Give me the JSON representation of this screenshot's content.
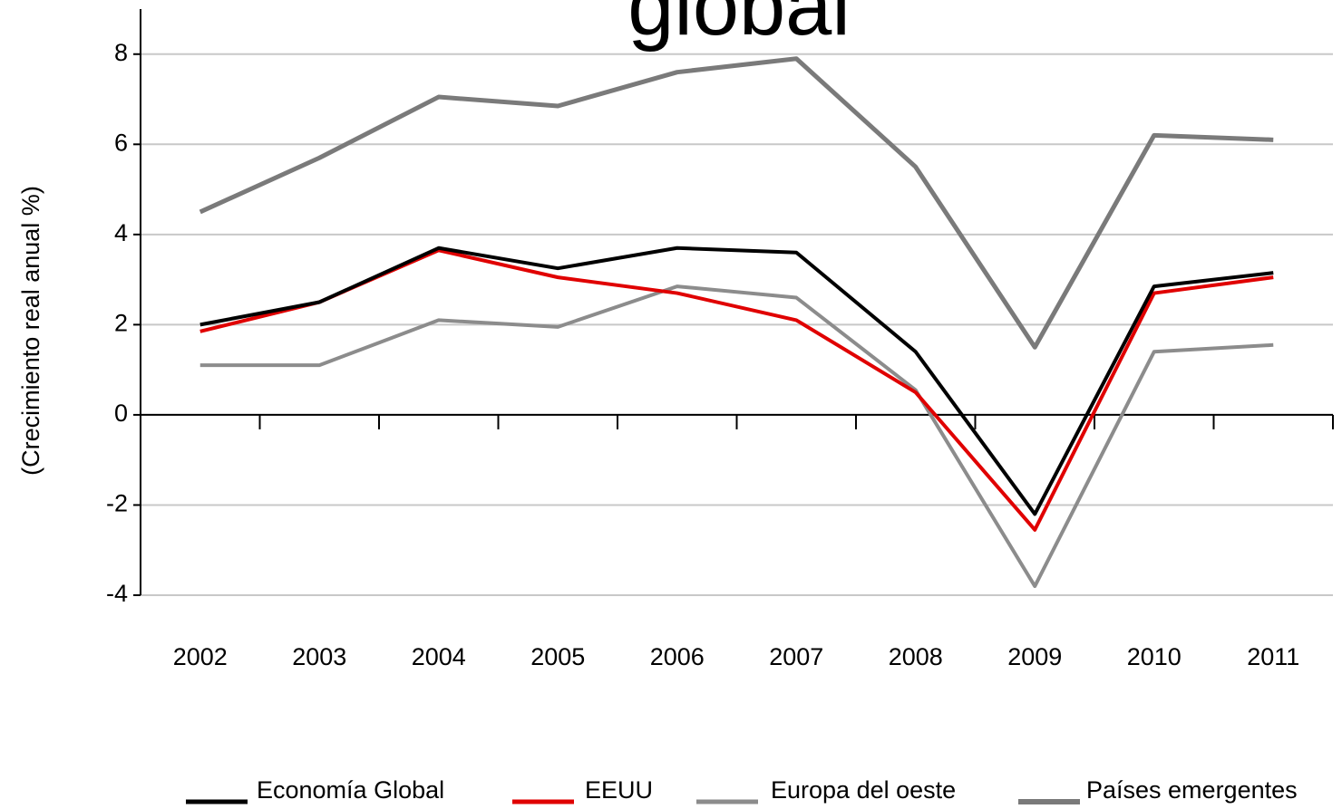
{
  "chart_data": {
    "type": "line",
    "title": "global",
    "y_label": "(Crecimiento real anual %)",
    "categories": [
      "2002",
      "2003",
      "2004",
      "2005",
      "2006",
      "2007",
      "2008",
      "2009",
      "2010",
      "2011"
    ],
    "series": [
      {
        "name": "Economía Global",
        "color": "#000000",
        "values": [
          2.0,
          2.5,
          3.7,
          3.25,
          3.7,
          3.6,
          1.4,
          -2.2,
          2.85,
          3.15
        ]
      },
      {
        "name": "EEUU",
        "color": "#e00000",
        "values": [
          1.85,
          2.5,
          3.65,
          3.05,
          2.7,
          2.1,
          0.5,
          -2.55,
          2.7,
          3.05
        ]
      },
      {
        "name": "Europa del oeste",
        "color": "#8c8c8c",
        "values": [
          1.1,
          1.1,
          2.1,
          1.95,
          2.85,
          2.6,
          0.55,
          -3.8,
          1.4,
          1.55
        ]
      },
      {
        "name": "Países emergentes",
        "color": "#7a7a7a",
        "values": [
          4.5,
          5.7,
          7.05,
          6.85,
          7.6,
          7.9,
          5.5,
          1.5,
          6.2,
          6.1
        ]
      }
    ],
    "ylim": [
      -4,
      9
    ],
    "yticks": [
      -4,
      -2,
      0,
      2,
      4,
      6,
      8
    ],
    "grid": true,
    "legend": "bottom"
  }
}
